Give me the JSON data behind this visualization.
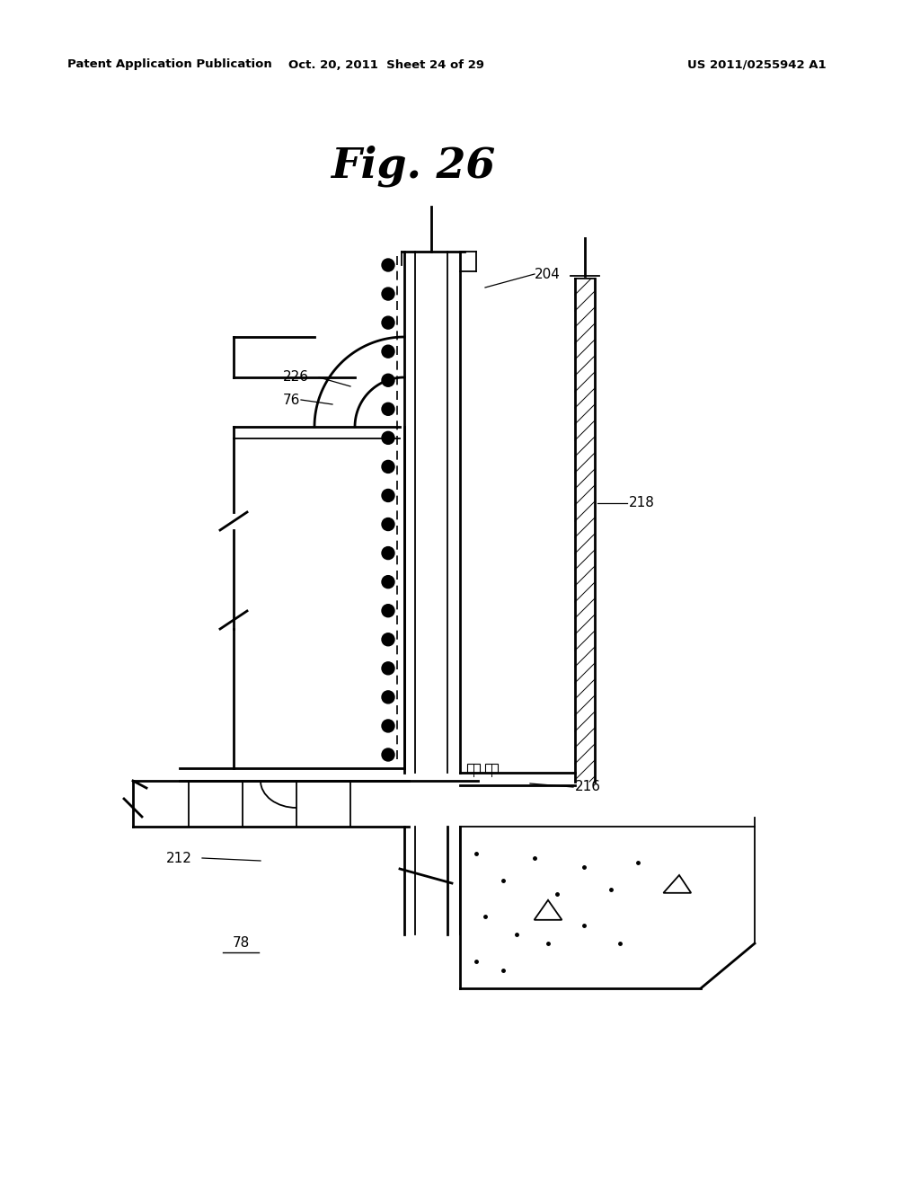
{
  "title": "Fig. 26",
  "header_left": "Patent Application Publication",
  "header_center": "Oct. 20, 2011  Sheet 24 of 29",
  "header_right": "US 2011/0255942 A1",
  "bg_color": "#ffffff"
}
